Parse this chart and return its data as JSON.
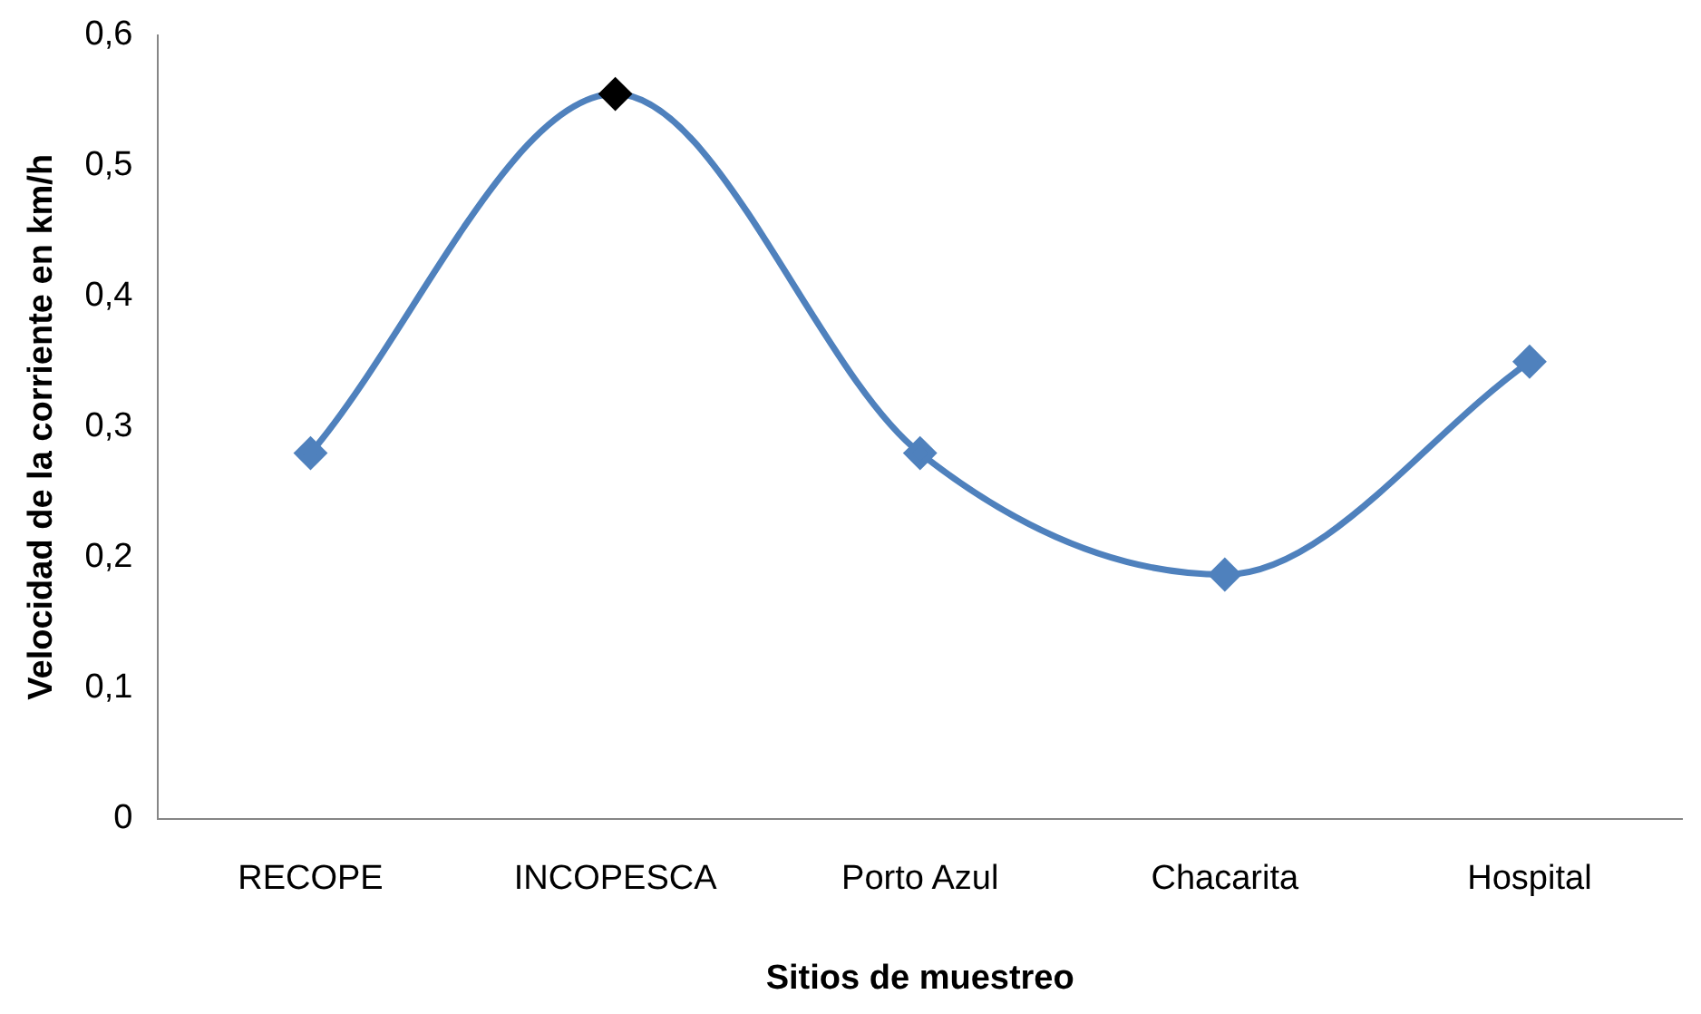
{
  "chart_data": {
    "type": "line",
    "xlabel": "Sitios de muestreo",
    "ylabel": "Velocidad de la corriente en km/h",
    "categories": [
      "RECOPE",
      "INCOPESCA",
      "Porto Azul",
      "Chacarita",
      "Hospital"
    ],
    "series": [
      {
        "color": "#4f81bd",
        "colors": [
          "#4f81bd",
          "#000000",
          "#4f81bd",
          "#4f81bd",
          "#4f81bd"
        ],
        "values": [
          0.28,
          0.555,
          0.28,
          0.187,
          0.35
        ]
      }
    ],
    "ylim": [
      0,
      0.6
    ],
    "yticks": [
      {
        "value": 0,
        "label": "0"
      },
      {
        "value": 0.1,
        "label": "0,1"
      },
      {
        "value": 0.2,
        "label": "0,2"
      },
      {
        "value": 0.3,
        "label": "0,3"
      },
      {
        "value": 0.4,
        "label": "0,4"
      },
      {
        "value": 0.5,
        "label": "0,5"
      },
      {
        "value": 0.6,
        "label": "0,6"
      }
    ],
    "grid": false,
    "legend": false,
    "marker": "diamond",
    "line_style": "solid"
  }
}
